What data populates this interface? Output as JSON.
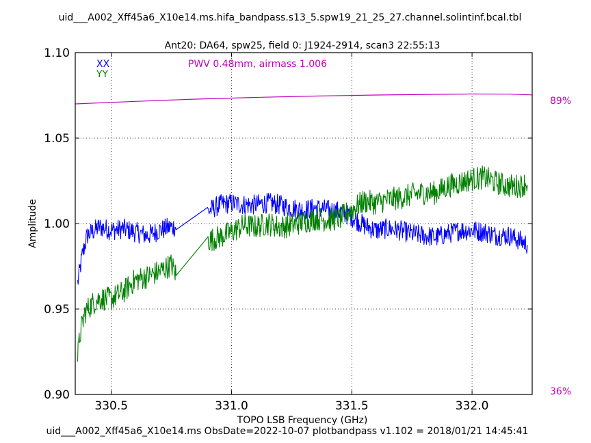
{
  "chart_data": {
    "type": "line",
    "title": "uid___A002_Xff45a6_X10e14.ms.hifa_bandpass.s13_5.spw19_21_25_27.channel.solintinf.bcal.tbl",
    "subtitle": "Ant20: DA64,  spw25,  field 0: J1924-2914,  scan3  22:55:13",
    "xlabel": "TOPO LSB Frequency (GHz)",
    "ylabel": "Amplitude",
    "footer": "uid___A002_Xff45a6_X10e14.ms  ObsDate=2022-10-07   plotbandpass v1.102 = 2018/01/21 14:45:41",
    "annotation": "PWV 0.48mm, airmass 1.006",
    "xlim": [
      330.35,
      332.25
    ],
    "ylim": [
      0.9,
      1.1
    ],
    "xticks": [
      330.5,
      331.0,
      331.5,
      332.0
    ],
    "xtick_labels": [
      "330.5",
      "331.0",
      "331.5",
      "332.0"
    ],
    "yticks": [
      0.9,
      0.95,
      1.0,
      1.05,
      1.1
    ],
    "ytick_labels": [
      "0.90",
      "0.95",
      "1.00",
      "1.05",
      "1.10"
    ],
    "grid": true,
    "legend": "top-left",
    "right_axis_labels": {
      "top": "89%",
      "bottom": "36%"
    },
    "colors": {
      "XX": "#0000ff",
      "YY": "#008000",
      "atm": "#c000c0"
    },
    "series": [
      {
        "name": "XX",
        "color": "#0000ff",
        "x": [
          330.36,
          330.38,
          330.4,
          330.45,
          330.5,
          330.55,
          330.6,
          330.65,
          330.7,
          330.75,
          330.77,
          330.9,
          330.95,
          331.0,
          331.05,
          331.1,
          331.15,
          331.2,
          331.25,
          331.3,
          331.35,
          331.4,
          331.45,
          331.5,
          331.55,
          331.6,
          331.65,
          331.7,
          331.75,
          331.8,
          331.85,
          331.9,
          331.95,
          332.0,
          332.05,
          332.1,
          332.15,
          332.2,
          332.23
        ],
        "values": [
          0.965,
          0.982,
          0.993,
          0.998,
          0.996,
          0.997,
          0.995,
          0.993,
          0.996,
          0.998,
          0.998,
          1.007,
          1.011,
          1.012,
          1.011,
          1.011,
          1.012,
          1.011,
          1.009,
          1.008,
          1.009,
          1.008,
          1.007,
          1.004,
          0.999,
          0.996,
          0.997,
          0.996,
          0.994,
          0.993,
          0.992,
          0.994,
          0.996,
          0.996,
          0.995,
          0.993,
          0.993,
          0.99,
          0.988
        ]
      },
      {
        "name": "YY",
        "color": "#008000",
        "x": [
          330.36,
          330.37,
          330.39,
          330.42,
          330.45,
          330.5,
          330.55,
          330.6,
          330.65,
          330.7,
          330.75,
          330.77,
          330.9,
          330.95,
          331.0,
          331.05,
          331.1,
          331.15,
          331.2,
          331.25,
          331.3,
          331.35,
          331.4,
          331.45,
          331.5,
          331.55,
          331.6,
          331.65,
          331.7,
          331.75,
          331.8,
          331.85,
          331.9,
          331.95,
          332.0,
          332.05,
          332.1,
          332.15,
          332.2,
          332.23
        ],
        "values": [
          0.922,
          0.935,
          0.948,
          0.953,
          0.956,
          0.956,
          0.96,
          0.967,
          0.969,
          0.972,
          0.976,
          0.97,
          0.99,
          0.992,
          0.995,
          0.999,
          0.998,
          1.0,
          0.998,
          0.999,
          1.001,
          1.003,
          1.002,
          1.003,
          1.008,
          1.013,
          1.012,
          1.014,
          1.015,
          1.017,
          1.018,
          1.018,
          1.022,
          1.024,
          1.026,
          1.027,
          1.024,
          1.022,
          1.022,
          1.024
        ]
      },
      {
        "name": "atm",
        "color": "#c000c0",
        "x": [
          330.35,
          330.6,
          330.85,
          331.1,
          331.35,
          331.6,
          331.85,
          332.0,
          332.15,
          332.25
        ],
        "values": [
          1.07,
          1.0715,
          1.0728,
          1.0738,
          1.0746,
          1.0752,
          1.0756,
          1.0758,
          1.0757,
          1.0753
        ]
      }
    ]
  }
}
